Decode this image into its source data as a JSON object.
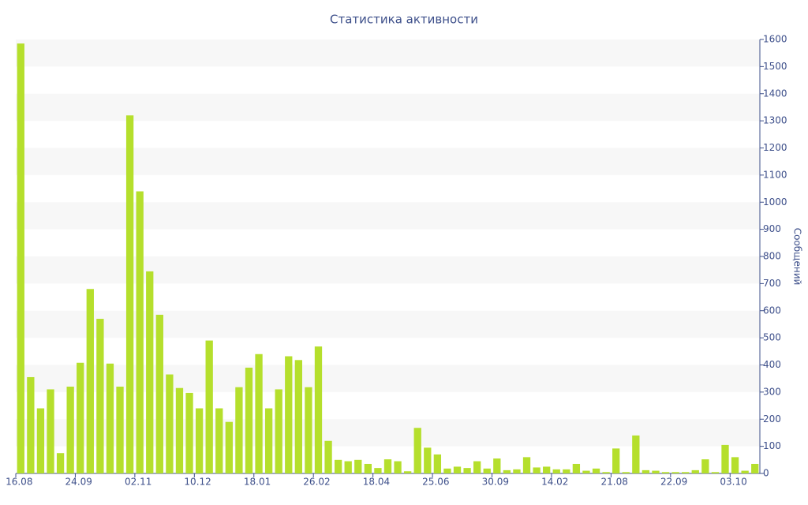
{
  "chart_data": {
    "type": "bar",
    "title": "Статистика активности",
    "y_label": "Сообщений",
    "categories": [
      "16.08",
      null,
      null,
      null,
      null,
      null,
      "24.09",
      null,
      null,
      null,
      null,
      null,
      "02.11",
      null,
      null,
      null,
      null,
      null,
      "10.12",
      null,
      null,
      null,
      null,
      null,
      "18.01",
      null,
      null,
      null,
      null,
      null,
      "26.02",
      null,
      null,
      null,
      null,
      null,
      "18.04",
      null,
      null,
      null,
      null,
      null,
      "25.06",
      null,
      null,
      null,
      null,
      null,
      "30.09",
      null,
      null,
      null,
      null,
      null,
      "14.02",
      null,
      null,
      null,
      null,
      null,
      "21.08",
      null,
      null,
      null,
      null,
      null,
      "22.09",
      null,
      null,
      null,
      null,
      null,
      "03.10",
      null,
      null
    ],
    "values": [
      1585,
      355,
      240,
      310,
      75,
      320,
      408,
      680,
      570,
      405,
      320,
      1320,
      1040,
      745,
      585,
      365,
      315,
      297,
      240,
      490,
      240,
      190,
      318,
      390,
      440,
      240,
      310,
      432,
      418,
      318,
      468,
      120,
      50,
      45,
      50,
      35,
      20,
      52,
      45,
      8,
      168,
      95,
      70,
      18,
      25,
      20,
      45,
      18,
      55,
      12,
      15,
      60,
      22,
      25,
      15,
      15,
      35,
      10,
      18,
      5,
      92,
      5,
      140,
      12,
      10,
      5,
      5,
      5,
      12,
      52,
      5,
      105,
      60,
      10,
      35
    ],
    "color": "#b5df2c",
    "ylim": [
      0,
      1600
    ],
    "yticks": [
      0,
      100,
      200,
      300,
      400,
      500,
      600,
      700,
      800,
      900,
      1000,
      1100,
      1200,
      1300,
      1400,
      1500,
      1600
    ],
    "grid": true
  }
}
